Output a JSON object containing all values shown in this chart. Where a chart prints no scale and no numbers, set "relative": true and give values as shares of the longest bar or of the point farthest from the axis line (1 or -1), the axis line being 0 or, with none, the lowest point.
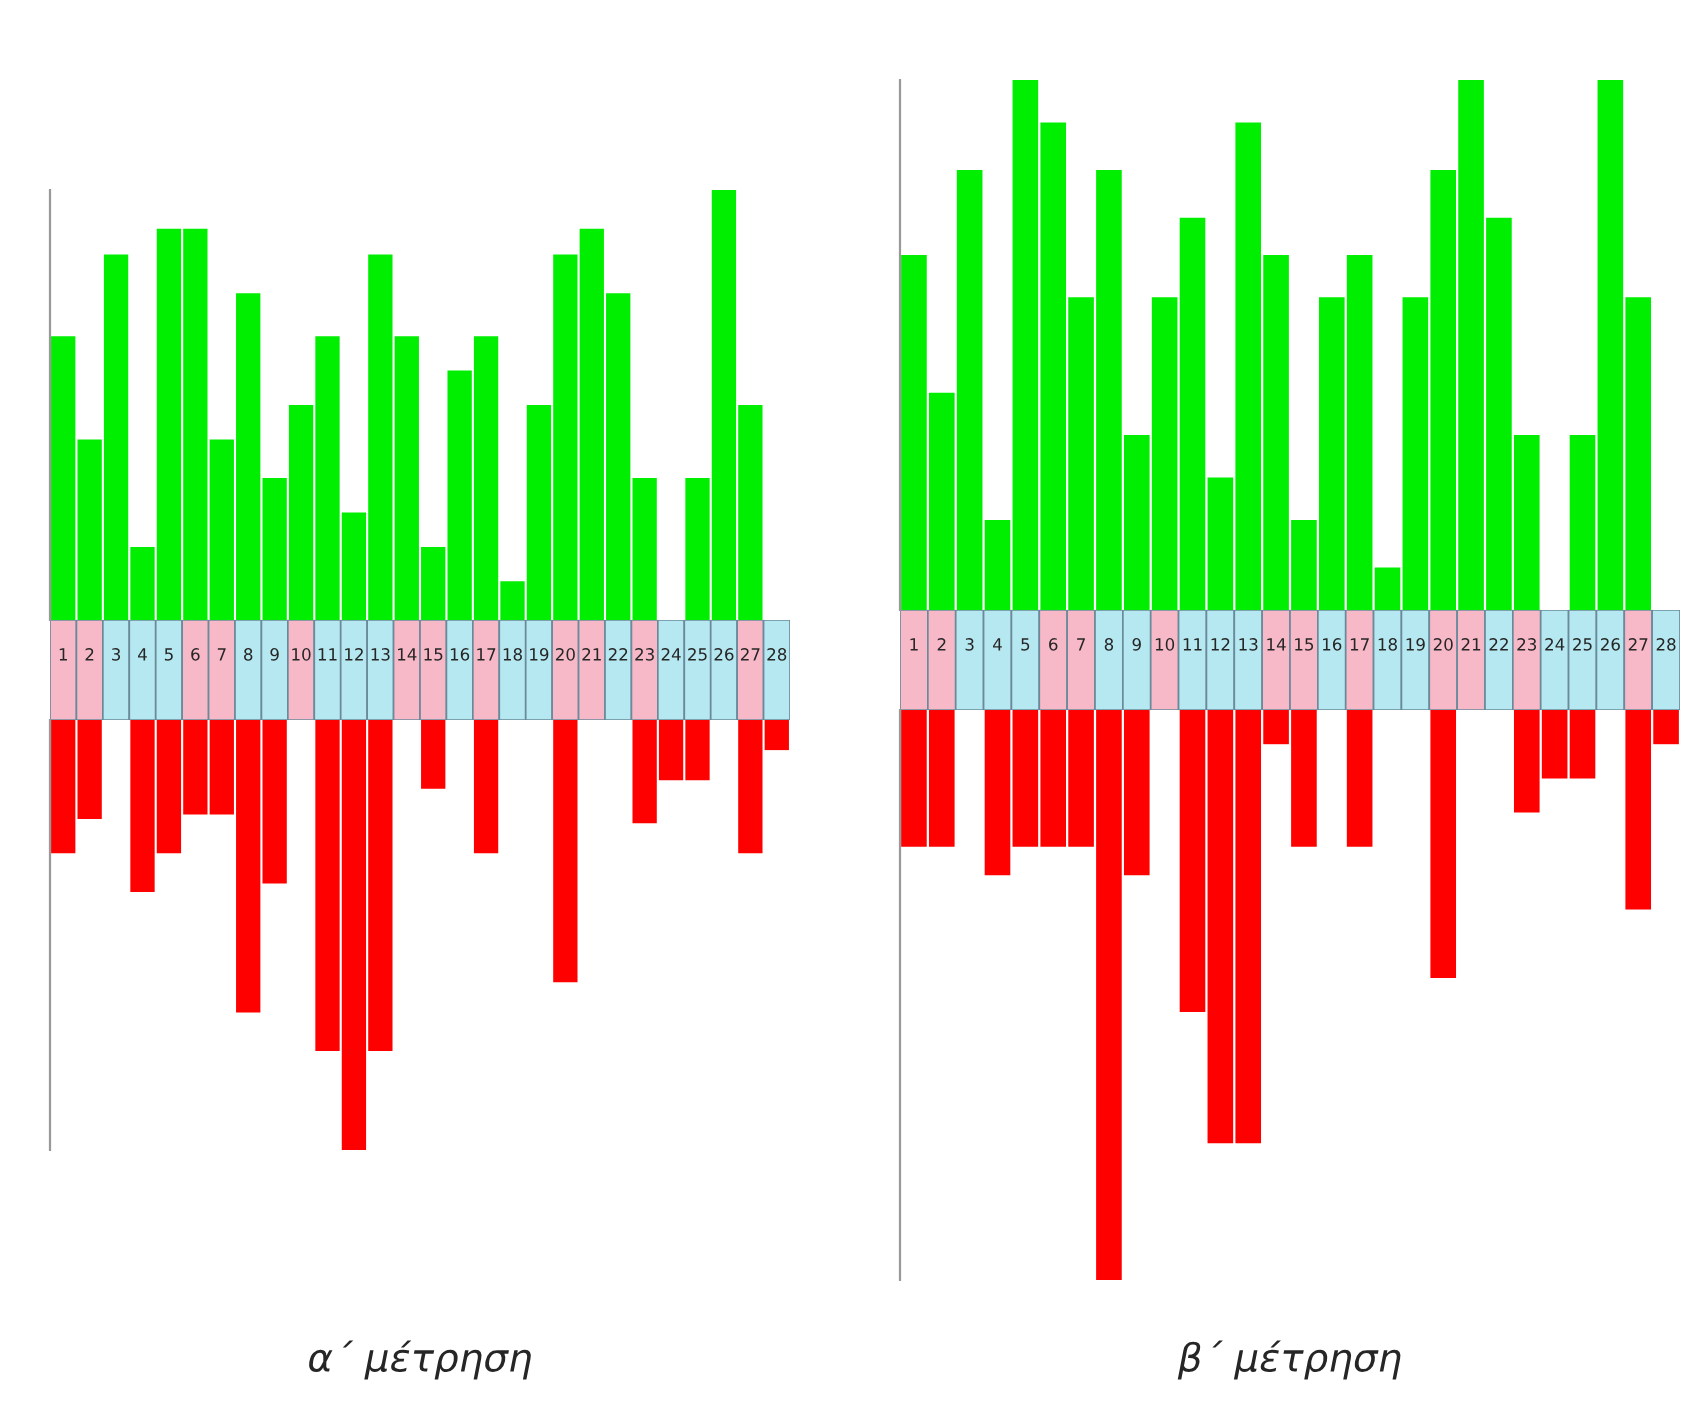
{
  "chart_data": [
    {
      "type": "bar",
      "relative": true,
      "categories": [
        "1",
        "2",
        "3",
        "4",
        "5",
        "6",
        "7",
        "8",
        "9",
        "10",
        "11",
        "12",
        "13",
        "14",
        "15",
        "16",
        "17",
        "18",
        "19",
        "20",
        "21",
        "22",
        "23",
        "24",
        "25",
        "26",
        "27",
        "28"
      ],
      "series": [
        {
          "color": "#00ee00",
          "values": [
            0.66,
            0.42,
            0.85,
            0.17,
            0.91,
            0.91,
            0.42,
            0.76,
            0.33,
            0.5,
            0.66,
            0.25,
            0.85,
            0.66,
            0.17,
            0.58,
            0.66,
            0.09,
            0.5,
            0.85,
            0.91,
            0.76,
            0.33,
            0,
            0.33,
            1,
            0.5,
            0
          ]
        }
      ]
    },
    {
      "type": "bar",
      "relative": true,
      "tick_labels": false,
      "categories": [
        "1",
        "2",
        "3",
        "4",
        "5",
        "6",
        "7",
        "8",
        "9",
        "10",
        "11",
        "12",
        "13",
        "14",
        "15",
        "16",
        "17",
        "18",
        "19",
        "20",
        "21",
        "22",
        "23",
        "24",
        "25",
        "26",
        "27",
        "28"
      ],
      "series": [
        {
          "color": "#ff0000",
          "values": [
            -0.31,
            -0.23,
            0,
            -0.4,
            -0.31,
            -0.22,
            -0.22,
            -0.68,
            -0.38,
            0,
            -0.77,
            -1,
            -0.77,
            0,
            -0.16,
            0,
            -0.31,
            0,
            0,
            -0.61,
            0,
            0,
            -0.24,
            -0.14,
            -0.14,
            0,
            -0.31,
            -0.07
          ]
        }
      ],
      "annotations": [
        "α΄ μέτρηση"
      ]
    },
    {
      "type": "bar",
      "relative": true,
      "categories": [
        "1",
        "2",
        "3",
        "4",
        "5",
        "6",
        "7",
        "8",
        "9",
        "10",
        "11",
        "12",
        "13",
        "14",
        "15",
        "16",
        "17",
        "18",
        "19",
        "20",
        "21",
        "22",
        "23",
        "24",
        "25",
        "26",
        "27",
        "28"
      ],
      "series": [
        {
          "color": "#00ee00",
          "values": [
            0.67,
            0.41,
            0.83,
            0.17,
            1,
            0.92,
            0.59,
            0.83,
            0.33,
            0.59,
            0.74,
            0.25,
            0.92,
            0.67,
            0.17,
            0.59,
            0.67,
            0.08,
            0.59,
            0.83,
            1,
            0.74,
            0.33,
            0,
            0.33,
            1,
            0.59,
            0
          ]
        }
      ]
    },
    {
      "type": "bar",
      "relative": true,
      "tick_labels": false,
      "categories": [
        "1",
        "2",
        "3",
        "4",
        "5",
        "6",
        "7",
        "8",
        "9",
        "10",
        "11",
        "12",
        "13",
        "14",
        "15",
        "16",
        "17",
        "18",
        "19",
        "20",
        "21",
        "22",
        "23",
        "24",
        "25",
        "26",
        "27",
        "28"
      ],
      "series": [
        {
          "color": "#ff0000",
          "values": [
            -0.24,
            -0.24,
            0,
            -0.29,
            -0.24,
            -0.24,
            -0.24,
            -1,
            -0.29,
            0,
            -0.53,
            -0.76,
            -0.76,
            -0.06,
            -0.24,
            0,
            -0.24,
            0,
            0,
            -0.47,
            0,
            0,
            -0.18,
            -0.12,
            -0.12,
            0,
            -0.35,
            -0.06
          ]
        }
      ],
      "annotations": [
        "β΄ μέτρηση"
      ]
    }
  ]
}
